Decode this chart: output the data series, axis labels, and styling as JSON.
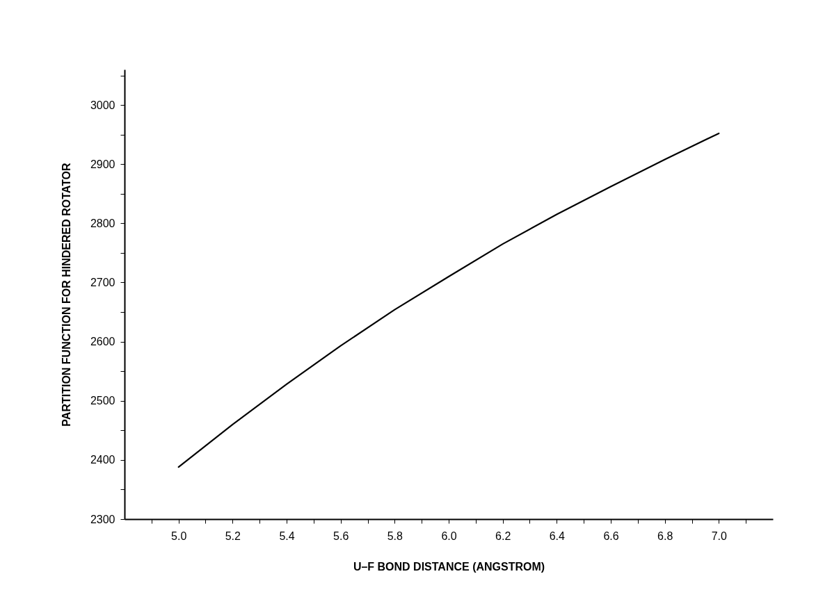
{
  "chart_data": {
    "type": "line",
    "xlabel": "U–F BOND DISTANCE (ANGSTROM)",
    "ylabel": "PARTITION FUNCTION FOR HINDERED ROTATOR",
    "x": [
      5.0,
      5.2,
      5.4,
      5.6,
      5.8,
      6.0,
      6.2,
      6.4,
      6.6,
      6.8,
      7.0
    ],
    "series": [
      {
        "color": "#000000",
        "values": [
          2388,
          2460,
          2528,
          2593,
          2654,
          2710,
          2765,
          2815,
          2862,
          2908,
          2952
        ]
      }
    ],
    "xlim": [
      4.8,
      7.2
    ],
    "xticks": [
      {
        "value": 4.9,
        "label": null
      },
      {
        "value": 5.0,
        "label": "5.0"
      },
      {
        "value": 5.1,
        "label": null
      },
      {
        "value": 5.2,
        "label": "5.2"
      },
      {
        "value": 5.3,
        "label": null
      },
      {
        "value": 5.4,
        "label": "5.4"
      },
      {
        "value": 5.5,
        "label": null
      },
      {
        "value": 5.6,
        "label": "5.6"
      },
      {
        "value": 5.7,
        "label": null
      },
      {
        "value": 5.8,
        "label": "5.8"
      },
      {
        "value": 5.9,
        "label": null
      },
      {
        "value": 6.0,
        "label": "6.0"
      },
      {
        "value": 6.1,
        "label": null
      },
      {
        "value": 6.2,
        "label": "6.2"
      },
      {
        "value": 6.3,
        "label": null
      },
      {
        "value": 6.4,
        "label": "6.4"
      },
      {
        "value": 6.5,
        "label": null
      },
      {
        "value": 6.6,
        "label": "6.6"
      },
      {
        "value": 6.7,
        "label": null
      },
      {
        "value": 6.8,
        "label": "6.8"
      },
      {
        "value": 6.9,
        "label": null
      },
      {
        "value": 7.0,
        "label": "7.0"
      },
      {
        "value": 7.1,
        "label": null
      }
    ],
    "ylim": [
      2300,
      3060
    ],
    "yticks": [
      2300,
      {
        "value": 2350,
        "label": null
      },
      2400,
      {
        "value": 2450,
        "label": null
      },
      2500,
      {
        "value": 2550,
        "label": null
      },
      2600,
      {
        "value": 2650,
        "label": null
      },
      2700,
      {
        "value": 2750,
        "label": null
      },
      2800,
      {
        "value": 2850,
        "label": null
      },
      2900,
      {
        "value": 2950,
        "label": null
      },
      3000,
      {
        "value": 3050,
        "label": null
      }
    ],
    "grid": false,
    "marker": "none",
    "line_style": "solid"
  }
}
